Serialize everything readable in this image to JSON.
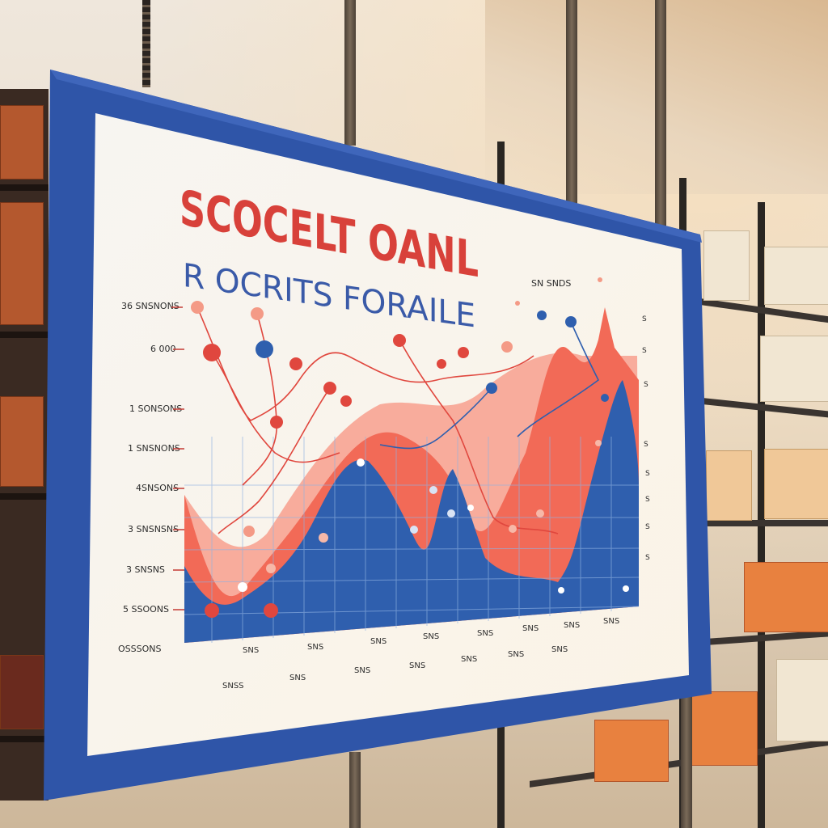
{
  "poster": {
    "title": "SCOCELT OANL",
    "subtitle": "R OCRITS FORAILE",
    "corner_label": "SN SNDS",
    "y_tick_labels": [
      "36 SNSNONS",
      "6 000",
      "1 SONSONS",
      "1 SNSNONS",
      "4SNSONS",
      "3 SNSNSNS",
      "3 SNSNS",
      "5 SSOONS",
      "OSSSONS"
    ],
    "x_tick_labels_row1": [
      "SNS",
      "SNS",
      "SNS",
      "SNS",
      "SNS",
      "SNS",
      "SNS",
      "SNS"
    ],
    "x_tick_labels_row2": [
      "SNSS",
      "SNS",
      "SNS",
      "SNS",
      "SNS",
      "SNS",
      "SNS"
    ],
    "right_tick_labels": [
      "S",
      "S",
      "S",
      "S",
      "S",
      "S",
      "S",
      "S"
    ],
    "colors": {
      "frame": "#2f55a8",
      "title": "#d8413a",
      "subtitle": "#3a5aa8",
      "blue_area": "#2f5fae",
      "coral_area": "#f26a57",
      "pink_area": "#f7a494",
      "dot_red": "#e0473e",
      "dot_blue": "#2f5fae"
    }
  }
}
